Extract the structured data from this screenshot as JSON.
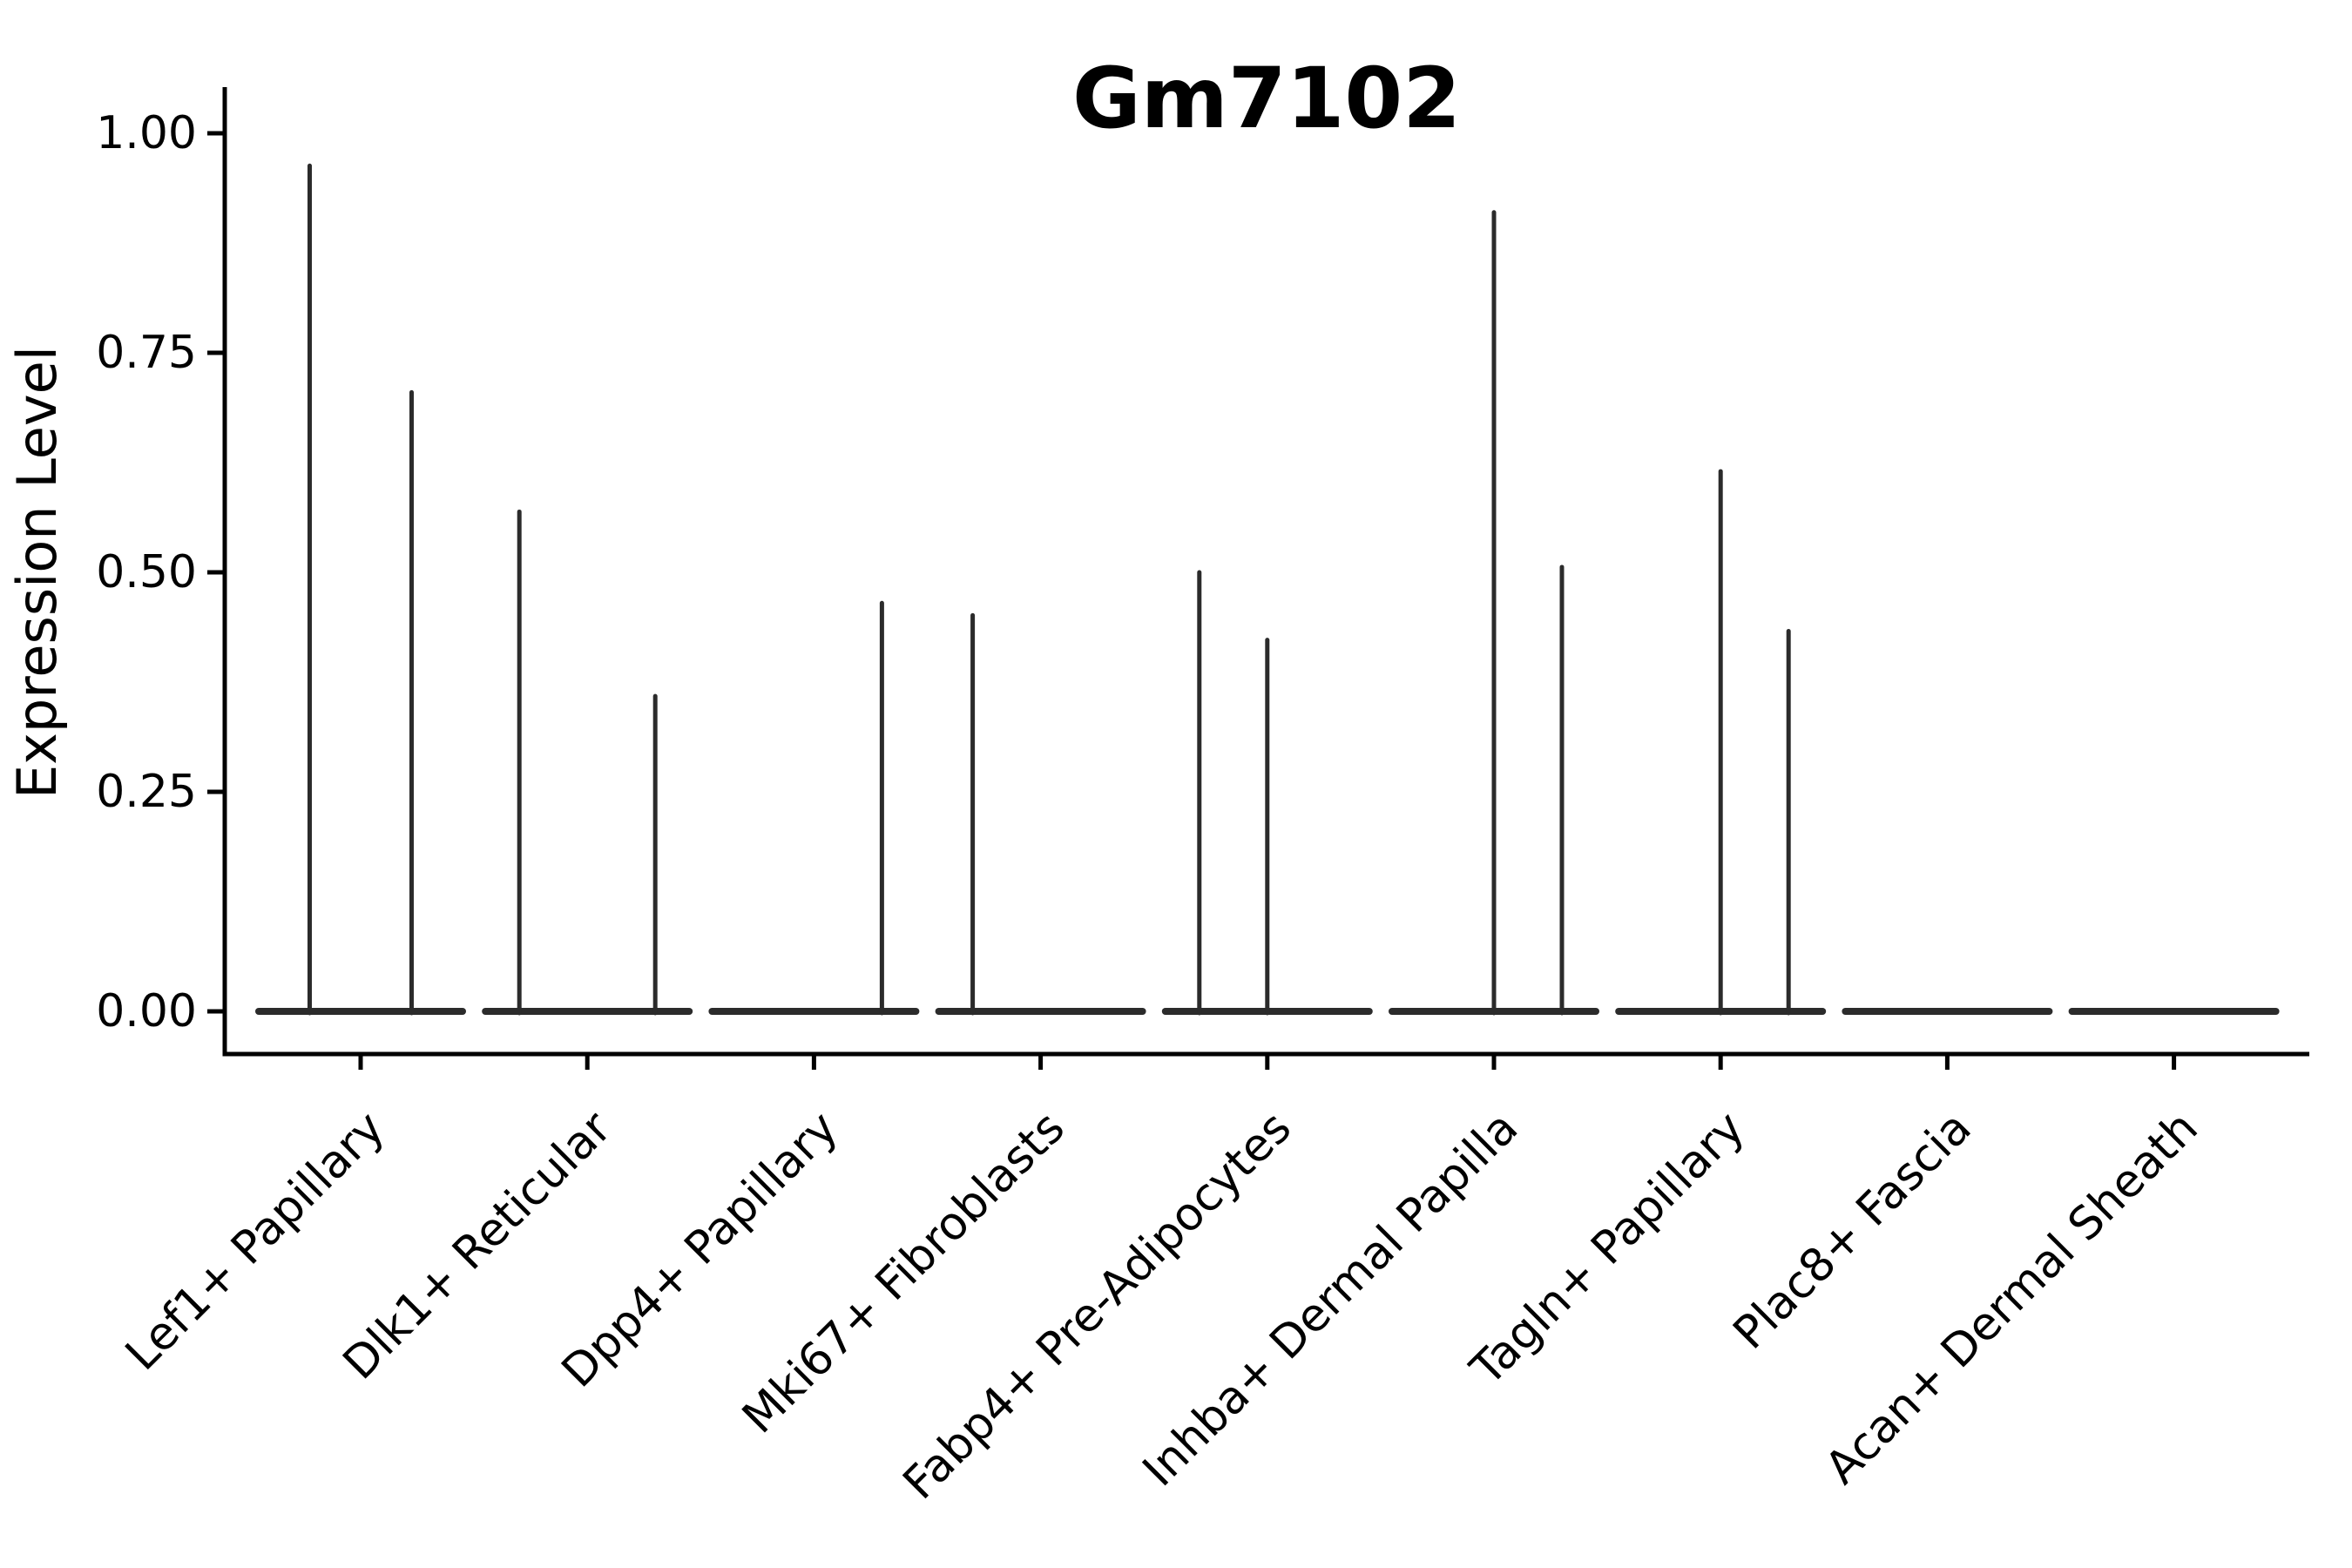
{
  "figure": {
    "background": "#ffffff"
  },
  "chart_data": {
    "type": "violin",
    "title": "Gm7102",
    "xlabel": "",
    "ylabel": "Expression Level",
    "ylim": [
      0,
      1
    ],
    "y_axis_expansion": 0.05,
    "grid": false,
    "legend": "none",
    "violin_style": "collapsed-base-with-needle-spikes",
    "line_color": "#2b2b2b",
    "axis_color": "#000000",
    "yticks": [
      "0.00",
      "0.25",
      "0.50",
      "0.75",
      "1.00"
    ],
    "ytick_values": [
      0.0,
      0.25,
      0.5,
      0.75,
      1.0
    ],
    "categories": [
      {
        "label": "Lef1+ Papillary",
        "slots": 2,
        "spikes": [
          {
            "slot": 0,
            "value": 0.963
          },
          {
            "slot": 1,
            "value": 0.705
          }
        ]
      },
      {
        "label": "Dlk1+ Reticular",
        "slots": 3,
        "spikes": [
          {
            "slot": 0,
            "value": 0.569
          },
          {
            "slot": 2,
            "value": 0.359
          }
        ]
      },
      {
        "label": "Dpp4+ Papillary",
        "slots": 3,
        "spikes": [
          {
            "slot": 2,
            "value": 0.465
          }
        ]
      },
      {
        "label": "Mki67+ Fibroblasts",
        "slots": 3,
        "spikes": [
          {
            "slot": 0,
            "value": 0.451
          }
        ]
      },
      {
        "label": "Fabp4+ Pre-Adipocytes",
        "slots": 3,
        "spikes": [
          {
            "slot": 0,
            "value": 0.5
          },
          {
            "slot": 1,
            "value": 0.423
          }
        ]
      },
      {
        "label": "Inhba+ Dermal Papilla",
        "slots": 3,
        "spikes": [
          {
            "slot": 1,
            "value": 0.91
          },
          {
            "slot": 2,
            "value": 0.506
          }
        ]
      },
      {
        "label": "Tagln+ Papillary",
        "slots": 3,
        "spikes": [
          {
            "slot": 1,
            "value": 0.615
          },
          {
            "slot": 2,
            "value": 0.433
          }
        ]
      },
      {
        "label": "Plac8+ Fascia",
        "slots": 3,
        "spikes": []
      },
      {
        "label": "Acan+ Dermal Sheath",
        "slots": 3,
        "spikes": []
      }
    ]
  }
}
